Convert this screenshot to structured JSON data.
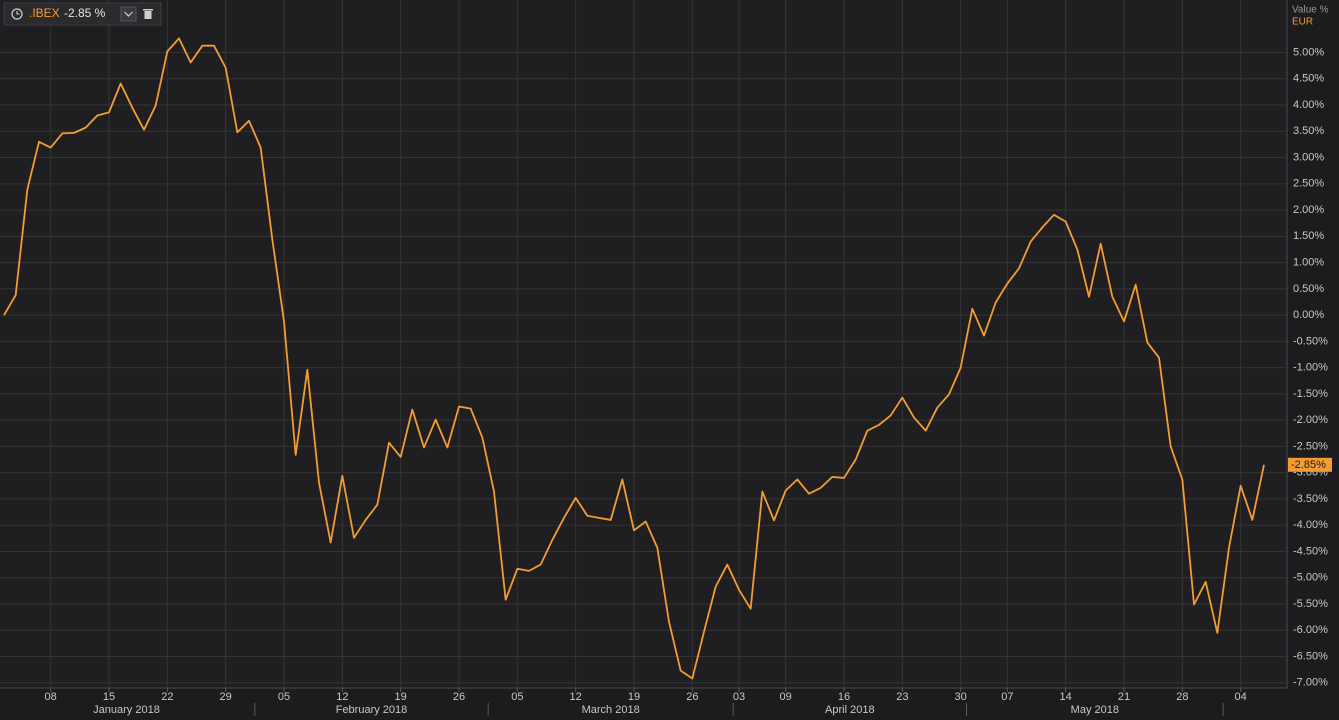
{
  "chart_data": {
    "type": "line",
    "legend_value": "-2.85 %",
    "axis_title": "Value %",
    "currency": "EUR",
    "last_label": "-2.85%",
    "x": [
      "2018-01-02",
      "2018-01-03",
      "2018-01-04",
      "2018-01-05",
      "2018-01-08",
      "2018-01-09",
      "2018-01-10",
      "2018-01-11",
      "2018-01-12",
      "2018-01-15",
      "2018-01-16",
      "2018-01-17",
      "2018-01-18",
      "2018-01-19",
      "2018-01-22",
      "2018-01-23",
      "2018-01-24",
      "2018-01-25",
      "2018-01-26",
      "2018-01-29",
      "2018-01-30",
      "2018-01-31",
      "2018-02-01",
      "2018-02-02",
      "2018-02-05",
      "2018-02-06",
      "2018-02-07",
      "2018-02-08",
      "2018-02-09",
      "2018-02-12",
      "2018-02-13",
      "2018-02-14",
      "2018-02-15",
      "2018-02-16",
      "2018-02-19",
      "2018-02-20",
      "2018-02-21",
      "2018-02-22",
      "2018-02-23",
      "2018-02-26",
      "2018-02-27",
      "2018-02-28",
      "2018-03-01",
      "2018-03-02",
      "2018-03-05",
      "2018-03-06",
      "2018-03-07",
      "2018-03-08",
      "2018-03-09",
      "2018-03-12",
      "2018-03-13",
      "2018-03-14",
      "2018-03-15",
      "2018-03-16",
      "2018-03-19",
      "2018-03-20",
      "2018-03-21",
      "2018-03-22",
      "2018-03-23",
      "2018-03-26",
      "2018-03-27",
      "2018-03-28",
      "2018-03-29",
      "2018-04-03",
      "2018-04-04",
      "2018-04-05",
      "2018-04-06",
      "2018-04-09",
      "2018-04-10",
      "2018-04-11",
      "2018-04-12",
      "2018-04-13",
      "2018-04-16",
      "2018-04-17",
      "2018-04-18",
      "2018-04-19",
      "2018-04-20",
      "2018-04-23",
      "2018-04-24",
      "2018-04-25",
      "2018-04-26",
      "2018-04-27",
      "2018-04-30",
      "2018-05-02",
      "2018-05-03",
      "2018-05-04",
      "2018-05-07",
      "2018-05-08",
      "2018-05-09",
      "2018-05-10",
      "2018-05-11",
      "2018-05-14",
      "2018-05-15",
      "2018-05-16",
      "2018-05-17",
      "2018-05-18",
      "2018-05-21",
      "2018-05-22",
      "2018-05-23",
      "2018-05-24",
      "2018-05-25",
      "2018-05-28",
      "2018-05-29",
      "2018-05-30",
      "2018-05-31",
      "2018-06-01",
      "2018-06-04",
      "2018-06-05",
      "2018-06-06"
    ],
    "series": [
      {
        "name": ".IBEX",
        "color": "#f39c33",
        "values": [
          0.0,
          0.38,
          2.39,
          3.3,
          3.19,
          3.46,
          3.47,
          3.57,
          3.8,
          3.86,
          4.41,
          3.95,
          3.53,
          3.99,
          5.02,
          5.27,
          4.81,
          5.13,
          5.13,
          4.71,
          3.48,
          3.7,
          3.19,
          1.44,
          -0.12,
          -2.66,
          -1.04,
          -3.19,
          -4.33,
          -3.06,
          -4.24,
          -3.9,
          -3.61,
          -2.43,
          -2.7,
          -1.8,
          -2.52,
          -1.99,
          -2.52,
          -1.74,
          -1.78,
          -2.33,
          -3.36,
          -5.42,
          -4.83,
          -4.87,
          -4.75,
          -4.28,
          -3.86,
          -3.48,
          -3.82,
          -3.86,
          -3.9,
          -3.13,
          -4.1,
          -3.93,
          -4.43,
          -5.84,
          -6.77,
          -6.92,
          -6.03,
          -5.17,
          -4.75,
          -5.23,
          -5.59,
          -3.36,
          -3.91,
          -3.34,
          -3.13,
          -3.4,
          -3.29,
          -3.08,
          -3.1,
          -2.75,
          -2.2,
          -2.09,
          -1.91,
          -1.57,
          -1.95,
          -2.2,
          -1.76,
          -1.51,
          -1.0,
          0.12,
          -0.39,
          0.24,
          0.6,
          0.89,
          1.4,
          1.67,
          1.91,
          1.78,
          1.25,
          0.35,
          1.36,
          0.35,
          -0.12,
          0.58,
          -0.52,
          -0.81,
          -2.5,
          -3.13,
          -5.51,
          -5.08,
          -6.05,
          -4.43,
          -3.25,
          -3.9,
          -2.85
        ]
      }
    ],
    "ylim": [
      -7.1,
      6.0
    ],
    "yticks": [
      {
        "value": 5,
        "label": "5.00%"
      },
      {
        "value": 4.5,
        "label": "4.50%"
      },
      {
        "value": 4,
        "label": "4.00%"
      },
      {
        "value": 3.5,
        "label": "3.50%"
      },
      {
        "value": 3,
        "label": "3.00%"
      },
      {
        "value": 2.5,
        "label": "2.50%"
      },
      {
        "value": 2,
        "label": "2.00%"
      },
      {
        "value": 1.5,
        "label": "1.50%"
      },
      {
        "value": 1,
        "label": "1.00%"
      },
      {
        "value": 0.5,
        "label": "0.50%"
      },
      {
        "value": 0,
        "label": "0.00%"
      },
      {
        "value": -0.5,
        "label": "-0.50%"
      },
      {
        "value": -1,
        "label": "-1.00%"
      },
      {
        "value": -1.5,
        "label": "-1.50%"
      },
      {
        "value": -2,
        "label": "-2.00%"
      },
      {
        "value": -2.5,
        "label": "-2.50%"
      },
      {
        "value": -3,
        "label": "-3.00%"
      },
      {
        "value": -3.5,
        "label": "-3.50%"
      },
      {
        "value": -4,
        "label": "-4.00%"
      },
      {
        "value": -4.5,
        "label": "-4.50%"
      },
      {
        "value": -5,
        "label": "-5.00%"
      },
      {
        "value": -5.5,
        "label": "-5.50%"
      },
      {
        "value": -6,
        "label": "-6.00%"
      },
      {
        "value": -6.5,
        "label": "-6.50%"
      },
      {
        "value": -7,
        "label": "-7.00%"
      }
    ],
    "xticks": [
      {
        "value": "2018-01-08",
        "label": "08"
      },
      {
        "value": "2018-01-15",
        "label": "15"
      },
      {
        "value": "2018-01-22",
        "label": "22"
      },
      {
        "value": "2018-01-29",
        "label": "29"
      },
      {
        "value": "2018-02-05",
        "label": "05"
      },
      {
        "value": "2018-02-12",
        "label": "12"
      },
      {
        "value": "2018-02-19",
        "label": "19"
      },
      {
        "value": "2018-02-26",
        "label": "26"
      },
      {
        "value": "2018-03-05",
        "label": "05"
      },
      {
        "value": "2018-03-12",
        "label": "12"
      },
      {
        "value": "2018-03-19",
        "label": "19"
      },
      {
        "value": "2018-03-26",
        "label": "26"
      },
      {
        "value": "2018-04-03",
        "label": "03"
      },
      {
        "value": "2018-04-09",
        "label": "09"
      },
      {
        "value": "2018-04-16",
        "label": "16"
      },
      {
        "value": "2018-04-23",
        "label": "23"
      },
      {
        "value": "2018-04-30",
        "label": "30"
      },
      {
        "value": "2018-05-07",
        "label": "07"
      },
      {
        "value": "2018-05-14",
        "label": "14"
      },
      {
        "value": "2018-05-21",
        "label": "21"
      },
      {
        "value": "2018-05-28",
        "label": "28"
      },
      {
        "value": "2018-06-04",
        "label": "04"
      }
    ],
    "months": [
      {
        "value": "2018-01",
        "label": "January 2018"
      },
      {
        "value": "2018-02",
        "label": "February 2018"
      },
      {
        "value": "2018-03",
        "label": "March 2018"
      },
      {
        "value": "2018-04",
        "label": "April 2018"
      },
      {
        "value": "2018-05",
        "label": "May 2018"
      }
    ],
    "grid": true
  }
}
